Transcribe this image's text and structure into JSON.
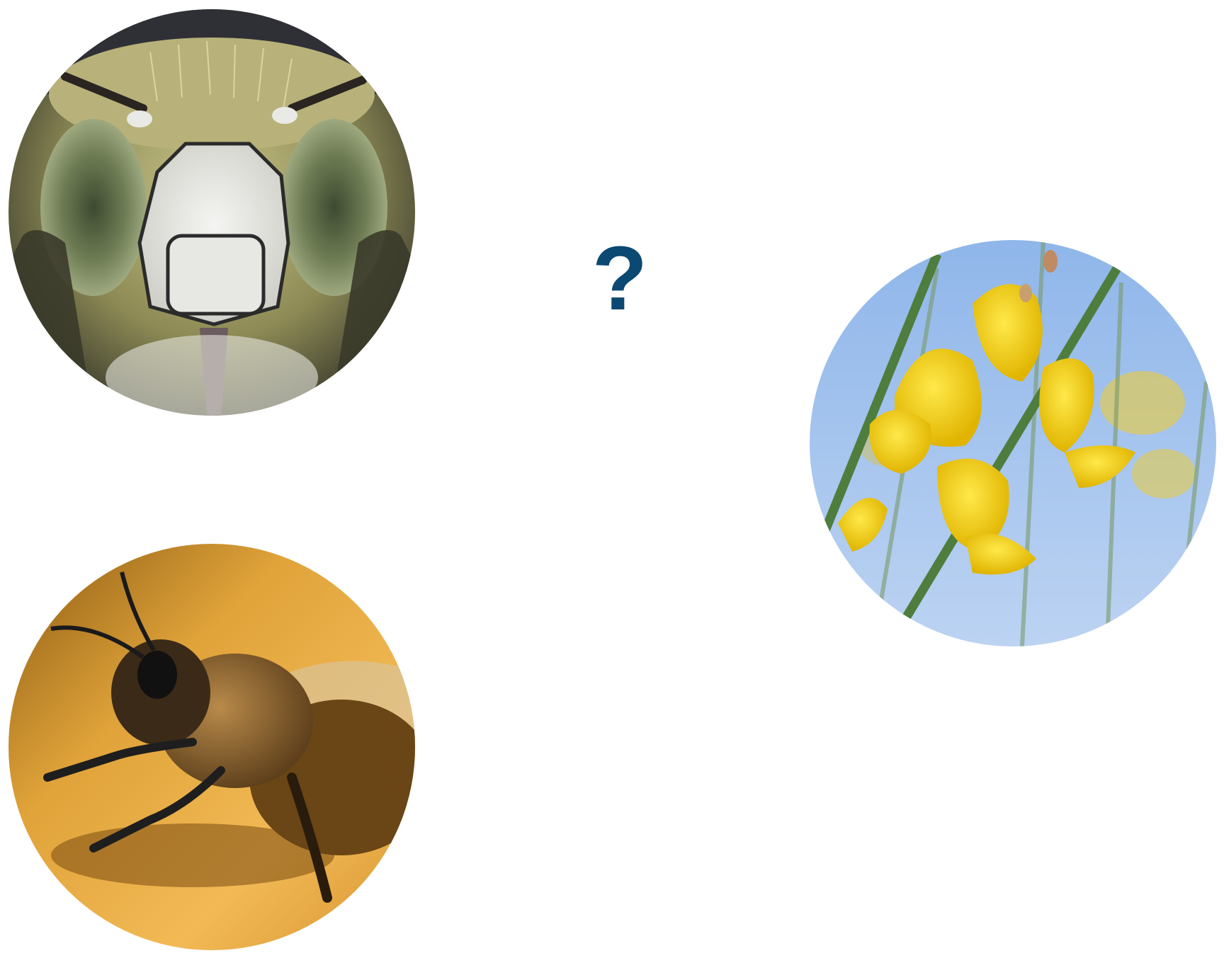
{
  "question_mark": "?",
  "colors": {
    "question_mark": "#0b4872",
    "background": "#ffffff"
  },
  "images": [
    {
      "name": "bee-face-closeup-photo"
    },
    {
      "name": "honey-bee-side-view-photo"
    },
    {
      "name": "yellow-broom-flowers-photo"
    }
  ]
}
